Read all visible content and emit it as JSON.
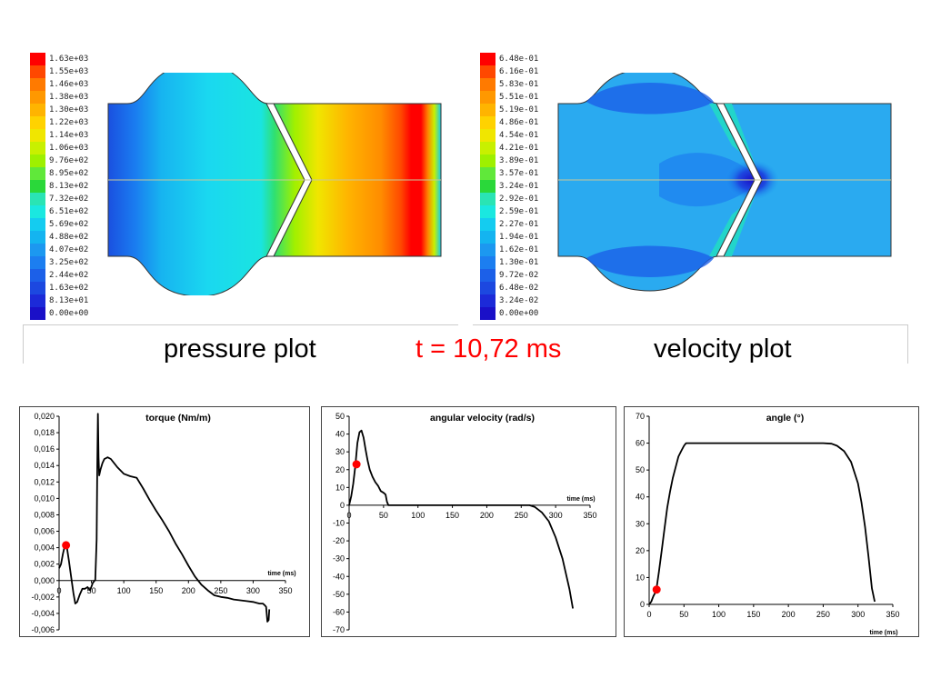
{
  "captions": {
    "pressure": "pressure plot",
    "time": "t = 10,72 ms",
    "velocity": "velocity plot"
  },
  "legend_pressure": {
    "labels": [
      "1.63e+03",
      "1.55e+03",
      "1.46e+03",
      "1.38e+03",
      "1.30e+03",
      "1.22e+03",
      "1.14e+03",
      "1.06e+03",
      "9.76e+02",
      "8.95e+02",
      "8.13e+02",
      "7.32e+02",
      "6.51e+02",
      "5.69e+02",
      "4.88e+02",
      "4.07e+02",
      "3.25e+02",
      "2.44e+02",
      "1.63e+02",
      "8.13e+01",
      "0.00e+00"
    ],
    "colors": [
      "#ff0000",
      "#ff4800",
      "#ff7a00",
      "#ff9800",
      "#ffb400",
      "#ffd200",
      "#f0e600",
      "#c8f000",
      "#9ef000",
      "#60e83a",
      "#2ad83a",
      "#2ae4b4",
      "#1ae8e0",
      "#14ccf0",
      "#14b4f0",
      "#1c98f0",
      "#1c7ef0",
      "#1c60e8",
      "#1c48e0",
      "#1c2ad8",
      "#1a10c8"
    ]
  },
  "legend_velocity": {
    "labels": [
      "6.48e-01",
      "6.16e-01",
      "5.83e-01",
      "5.51e-01",
      "5.19e-01",
      "4.86e-01",
      "4.54e-01",
      "4.21e-01",
      "3.89e-01",
      "3.57e-01",
      "3.24e-01",
      "2.92e-01",
      "2.59e-01",
      "2.27e-01",
      "1.94e-01",
      "1.62e-01",
      "1.30e-01",
      "9.72e-02",
      "6.48e-02",
      "3.24e-02",
      "0.00e+00"
    ],
    "colors": [
      "#ff0000",
      "#ff4800",
      "#ff7a00",
      "#ff9800",
      "#ffb400",
      "#ffd200",
      "#f0e600",
      "#c8f000",
      "#9ef000",
      "#60e83a",
      "#2ad83a",
      "#2ae4b4",
      "#1ae8e0",
      "#14ccf0",
      "#14b4f0",
      "#1c98f0",
      "#1c7ef0",
      "#1c60e8",
      "#1c48e0",
      "#1c2ad8",
      "#1a10c8"
    ]
  },
  "chart_data": [
    {
      "type": "line",
      "title": "torque (Nm/m)",
      "xlabel": "time (ms)",
      "xlim": [
        0,
        350
      ],
      "ylim": [
        -0.006,
        0.02
      ],
      "x_ticks": [
        "0",
        "50",
        "100",
        "150",
        "200",
        "250",
        "300",
        "350"
      ],
      "y_ticks": [
        "0,020",
        "0,018",
        "0,016",
        "0,014",
        "0,012",
        "0,010",
        "0,008",
        "0,006",
        "0,004",
        "0,002",
        "0,000",
        "-0,002",
        "-0,004",
        "-0,006"
      ],
      "series": [
        {
          "x": [
            0,
            3,
            6,
            9,
            12,
            15,
            18,
            22,
            25,
            28,
            32,
            36,
            40,
            44,
            48,
            52,
            56,
            58,
            59,
            60,
            61,
            62,
            64,
            67,
            70,
            75,
            80,
            90,
            100,
            110,
            120,
            130,
            140,
            150,
            160,
            170,
            180,
            190,
            200,
            210,
            220,
            230,
            240,
            250,
            260,
            270,
            280,
            290,
            300,
            305,
            310,
            315,
            318,
            320,
            322,
            324,
            325
          ],
          "y": [
            0.0015,
            0.002,
            0.0033,
            0.0043,
            0.0041,
            0.0025,
            0.0008,
            -0.0015,
            -0.0028,
            -0.0026,
            -0.0017,
            -0.001,
            -0.001,
            -0.0008,
            -0.0012,
            -0.0003,
            0.0001,
            0.005,
            0.014,
            0.0203,
            0.015,
            0.0128,
            0.0135,
            0.0143,
            0.0148,
            0.015,
            0.0148,
            0.0138,
            0.013,
            0.0127,
            0.0125,
            0.0112,
            0.0098,
            0.0085,
            0.0073,
            0.006,
            0.0045,
            0.0032,
            0.0018,
            0.0005,
            -0.0005,
            -0.0012,
            -0.0018,
            -0.002,
            -0.0021,
            -0.0023,
            -0.0024,
            -0.0025,
            -0.0026,
            -0.0027,
            -0.0028,
            -0.0028,
            -0.003,
            -0.0032,
            -0.005,
            -0.0048,
            -0.0035
          ]
        }
      ],
      "marker": {
        "x": 10.72,
        "y": 0.0043
      }
    },
    {
      "type": "line",
      "title": "angular velocity (rad/s)",
      "xlabel": "time (ms)",
      "xlim": [
        0,
        350
      ],
      "ylim": [
        -70,
        50
      ],
      "x_ticks": [
        "0",
        "50",
        "100",
        "150",
        "200",
        "250",
        "300",
        "350"
      ],
      "y_ticks": [
        "50",
        "40",
        "30",
        "20",
        "10",
        "0",
        "-10",
        "-20",
        "-30",
        "-40",
        "-50",
        "-60",
        "-70"
      ],
      "series": [
        {
          "x": [
            0,
            3,
            6,
            9,
            12,
            15,
            18,
            21,
            24,
            27,
            30,
            34,
            38,
            42,
            46,
            50,
            53,
            55,
            57,
            60,
            100,
            150,
            200,
            250,
            262,
            270,
            280,
            290,
            300,
            310,
            320,
            325
          ],
          "y": [
            0,
            5,
            12,
            22,
            35,
            41,
            42,
            38,
            31,
            25,
            20,
            16,
            13,
            11,
            8,
            7,
            6,
            2,
            0,
            0,
            0,
            0,
            0,
            0,
            0,
            -1,
            -4,
            -9,
            -18,
            -30,
            -47,
            -58
          ]
        }
      ],
      "marker": {
        "x": 10.72,
        "y": 23
      }
    },
    {
      "type": "line",
      "title": "angle (°)",
      "xlabel": "time (ms)",
      "xlim": [
        0,
        350
      ],
      "ylim": [
        0,
        70
      ],
      "x_ticks": [
        "0",
        "50",
        "100",
        "150",
        "200",
        "250",
        "300",
        "350"
      ],
      "y_ticks": [
        "70",
        "60",
        "50",
        "40",
        "30",
        "20",
        "10",
        "0"
      ],
      "series": [
        {
          "x": [
            0,
            3,
            6,
            10,
            14,
            18,
            22,
            26,
            30,
            34,
            38,
            42,
            46,
            50,
            53,
            56,
            60,
            100,
            150,
            200,
            250,
            262,
            270,
            280,
            290,
            300,
            305,
            310,
            315,
            320,
            324
          ],
          "y": [
            0,
            1,
            3,
            5,
            12,
            20,
            28,
            36,
            42,
            47,
            51,
            55,
            57,
            59,
            60,
            60,
            60,
            60,
            60,
            60,
            60,
            59.8,
            59,
            57,
            53,
            45,
            38,
            29,
            18,
            6,
            1
          ]
        }
      ],
      "marker": {
        "x": 10.72,
        "y": 5.5
      }
    }
  ]
}
